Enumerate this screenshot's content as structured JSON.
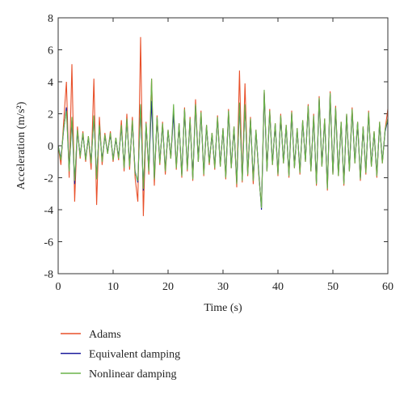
{
  "chart_data": {
    "type": "line",
    "xlabel": "Time (s)",
    "ylabel": "Acceleration (m/s²)",
    "x": [
      0,
      0.5,
      1,
      1.5,
      2,
      2.5,
      3,
      3.5,
      4,
      4.5,
      5,
      5.5,
      6,
      6.5,
      7,
      7.5,
      8,
      8.5,
      9,
      9.5,
      10,
      10.5,
      11,
      11.5,
      12,
      12.5,
      13,
      13.5,
      14,
      14.5,
      15,
      15.5,
      16,
      16.5,
      17,
      17.5,
      18,
      18.5,
      19,
      19.5,
      20,
      20.5,
      21,
      21.5,
      22,
      22.5,
      23,
      23.5,
      24,
      24.5,
      25,
      25.5,
      26,
      26.5,
      27,
      27.5,
      28,
      28.5,
      29,
      29.5,
      30,
      30.5,
      31,
      31.5,
      32,
      32.5,
      33,
      33.5,
      34,
      34.5,
      35,
      35.5,
      36,
      36.5,
      37,
      37.5,
      38,
      38.5,
      39,
      39.5,
      40,
      40.5,
      41,
      41.5,
      42,
      42.5,
      43,
      43.5,
      44,
      44.5,
      45,
      45.5,
      46,
      46.5,
      47,
      47.5,
      48,
      48.5,
      49,
      49.5,
      50,
      50.5,
      51,
      51.5,
      52,
      52.5,
      53,
      53.5,
      54,
      54.5,
      55,
      55.5,
      56,
      56.5,
      57,
      57.5,
      58,
      58.5,
      59,
      59.5,
      60
    ],
    "series": [
      {
        "name": "Adams",
        "color": "#e8502a",
        "values": [
          0,
          -1.2,
          1.5,
          4.0,
          -2.0,
          5.1,
          -3.5,
          1.2,
          -0.8,
          0.9,
          -1.0,
          0.6,
          -1.5,
          4.2,
          -3.7,
          1.8,
          -1.2,
          0.8,
          -0.5,
          0.9,
          -1.0,
          0.5,
          -0.9,
          1.6,
          -1.6,
          2.0,
          -1.5,
          1.8,
          -2.0,
          -3.5,
          6.8,
          -4.4,
          1.5,
          -1.8,
          4.2,
          -2.5,
          1.9,
          -1.2,
          1.5,
          -1.8,
          1.0,
          -0.8,
          2.2,
          -1.5,
          1.4,
          -2.0,
          2.4,
          -1.6,
          1.8,
          -2.2,
          2.9,
          -1.0,
          2.2,
          -1.9,
          1.3,
          -1.2,
          0.8,
          -1.5,
          1.9,
          -1.3,
          1.1,
          -2.1,
          2.3,
          -1.4,
          1.2,
          -2.6,
          4.7,
          -2.3,
          3.9,
          -1.9,
          1.8,
          -2.4,
          1.0,
          -1.8,
          -3.8,
          3.4,
          -1.6,
          2.3,
          -1.2,
          1.4,
          -1.9,
          2.0,
          -1.1,
          1.3,
          -2.0,
          2.2,
          -1.4,
          1.1,
          -1.8,
          1.6,
          -1.0,
          2.6,
          -1.6,
          2.0,
          -2.5,
          3.1,
          -1.3,
          1.7,
          -2.8,
          3.4,
          -1.8,
          2.5,
          -1.9,
          1.5,
          -2.5,
          2.0,
          -1.6,
          2.4,
          -1.1,
          1.5,
          -2.2,
          1.2,
          -1.8,
          2.2,
          -1.3,
          0.9,
          -2.0,
          1.5,
          -1.1,
          1.0,
          2.3
        ]
      },
      {
        "name": "Equivalent damping",
        "color": "#1c1c9c",
        "values": [
          0,
          -0.8,
          1.0,
          2.4,
          -1.5,
          1.6,
          -2.4,
          0.9,
          -0.6,
          0.7,
          -0.8,
          0.5,
          -1.0,
          1.8,
          -2.0,
          1.2,
          -0.9,
          0.6,
          -0.4,
          0.7,
          -0.8,
          0.4,
          -0.7,
          1.2,
          -1.3,
          1.6,
          -1.2,
          1.5,
          -1.6,
          -2.3,
          2.5,
          -2.8,
          1.3,
          -1.5,
          2.8,
          -2.0,
          1.7,
          -1.0,
          1.3,
          -1.5,
          0.9,
          -0.7,
          2.0,
          -1.3,
          1.3,
          -1.8,
          2.2,
          -1.4,
          1.6,
          -2.0,
          2.5,
          -0.9,
          2.0,
          -1.7,
          1.2,
          -1.0,
          0.7,
          -1.3,
          1.7,
          -1.2,
          1.0,
          -1.9,
          2.1,
          -1.3,
          1.1,
          -2.3,
          2.6,
          -2.1,
          2.5,
          -1.7,
          1.6,
          -2.1,
          0.9,
          -1.6,
          -4.0,
          3.3,
          -1.5,
          2.1,
          -1.1,
          1.3,
          -1.7,
          1.8,
          -1.0,
          1.2,
          -1.8,
          2.0,
          -1.3,
          1.0,
          -1.6,
          1.5,
          -0.9,
          2.4,
          -1.5,
          1.8,
          -2.3,
          2.9,
          -1.2,
          1.6,
          -2.6,
          3.2,
          -1.7,
          2.3,
          -1.8,
          1.4,
          -2.3,
          1.9,
          -1.5,
          2.2,
          -1.0,
          1.4,
          -2.0,
          1.1,
          -1.6,
          2.0,
          -1.2,
          0.8,
          -1.8,
          1.4,
          -1.0,
          0.9,
          1.6
        ]
      },
      {
        "name": "Nonlinear damping",
        "color": "#6ab34a",
        "values": [
          0,
          -0.9,
          1.1,
          2.2,
          -1.6,
          1.8,
          -2.2,
          1.0,
          -0.7,
          0.8,
          -0.9,
          0.6,
          -1.1,
          1.9,
          -2.1,
          1.3,
          -1.0,
          0.7,
          -0.5,
          0.8,
          -0.9,
          0.5,
          -0.8,
          1.3,
          -1.4,
          1.7,
          -1.3,
          1.6,
          -1.7,
          -2.2,
          2.6,
          -2.7,
          1.4,
          -1.6,
          4.2,
          -2.1,
          1.8,
          -1.1,
          1.4,
          -1.6,
          1.0,
          -0.8,
          2.6,
          -1.4,
          1.4,
          -1.9,
          2.3,
          -1.5,
          1.7,
          -2.1,
          2.6,
          -1.0,
          2.1,
          -1.8,
          1.3,
          -1.1,
          0.8,
          -1.4,
          1.8,
          -1.3,
          1.1,
          -2.0,
          2.2,
          -1.4,
          1.2,
          -2.4,
          2.7,
          -2.2,
          2.6,
          -1.8,
          1.7,
          -2.2,
          1.0,
          -1.7,
          -3.9,
          3.5,
          -1.6,
          2.2,
          -1.2,
          1.4,
          -1.8,
          1.9,
          -1.1,
          1.3,
          -1.9,
          2.1,
          -1.4,
          1.1,
          -1.7,
          1.6,
          -1.0,
          2.5,
          -1.6,
          1.9,
          -2.4,
          3.0,
          -1.3,
          1.7,
          -2.7,
          3.3,
          -1.8,
          2.4,
          -1.9,
          1.5,
          -2.4,
          2.0,
          -1.6,
          2.3,
          -1.1,
          1.5,
          -2.1,
          1.2,
          -1.7,
          2.1,
          -1.3,
          0.9,
          -1.9,
          1.5,
          -1.1,
          1.0,
          1.7
        ]
      }
    ],
    "xlim": [
      0,
      60
    ],
    "xticks": [
      0,
      10,
      20,
      30,
      40,
      50,
      60
    ],
    "ylim": [
      -8,
      8
    ],
    "yticks": [
      -8,
      -6,
      -4,
      -2,
      0,
      2,
      4,
      6,
      8
    ]
  }
}
